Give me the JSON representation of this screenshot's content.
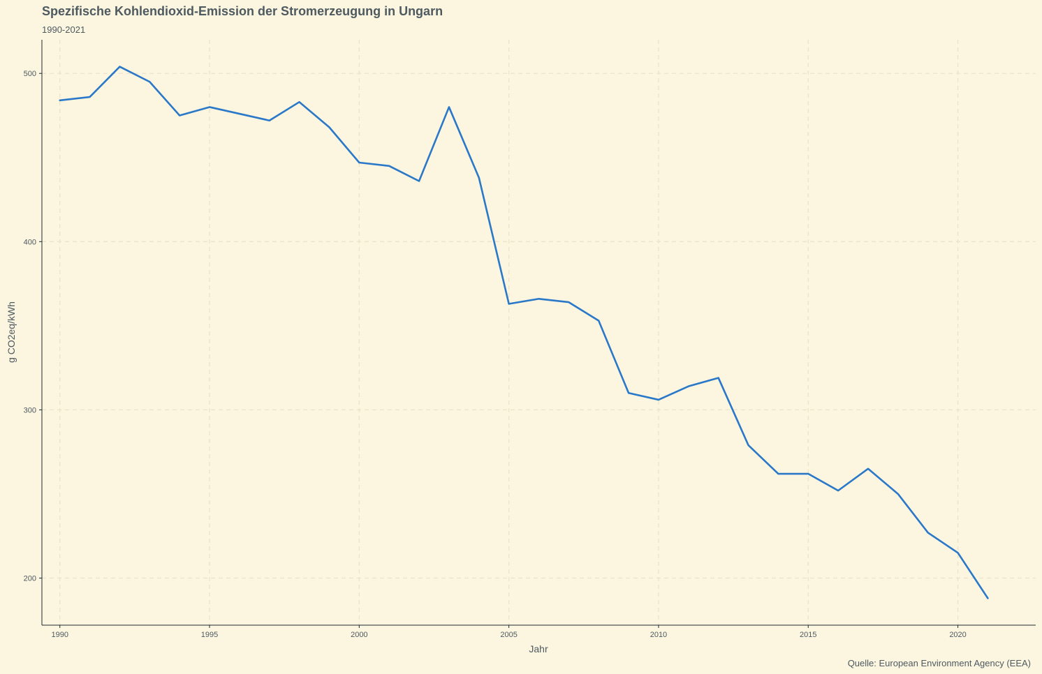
{
  "chart_data": {
    "type": "line",
    "title": "Spezifische Kohlendioxid-Emission der Stromerzeugung in Ungarn",
    "subtitle": "1990-2021",
    "xlabel": "Jahr",
    "ylabel": "g CO2eq/kWh",
    "caption": "Quelle: European Environment Agency (EEA)",
    "xlim": [
      1989.4,
      2022.6
    ],
    "ylim": [
      172,
      520
    ],
    "x_ticks": [
      1990,
      1995,
      2000,
      2005,
      2010,
      2015,
      2020
    ],
    "y_ticks": [
      200,
      300,
      400,
      500
    ],
    "grid": true,
    "line_color": "#2a78c8",
    "x": [
      1990,
      1991,
      1992,
      1993,
      1994,
      1995,
      1996,
      1997,
      1998,
      1999,
      2000,
      2001,
      2002,
      2003,
      2004,
      2005,
      2006,
      2007,
      2008,
      2009,
      2010,
      2011,
      2012,
      2013,
      2014,
      2015,
      2016,
      2017,
      2018,
      2019,
      2020,
      2021
    ],
    "series": [
      {
        "values": [
          484,
          486,
          504,
          495,
          475,
          480,
          476,
          472,
          483,
          468,
          447,
          445,
          436,
          480,
          438,
          363,
          366,
          364,
          353,
          310,
          306,
          314,
          319,
          279,
          262,
          262,
          252,
          265,
          250,
          227,
          215,
          188
        ]
      }
    ]
  }
}
